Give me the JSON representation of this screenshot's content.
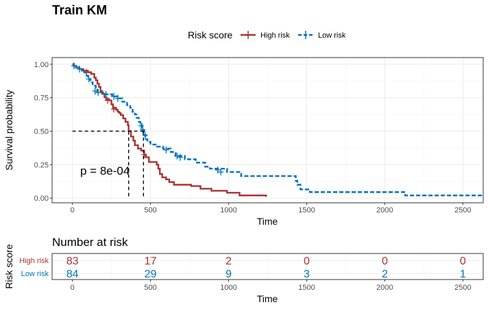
{
  "chart_data": [
    {
      "type": "line",
      "title": "Train KM",
      "xlabel": "Time",
      "ylabel": "Survival probability",
      "xlim": [
        -130,
        2630
      ],
      "ylim": [
        -0.035,
        1.05
      ],
      "x_ticks": [
        0,
        500,
        1000,
        1500,
        2000,
        2500
      ],
      "y_ticks": [
        0.0,
        0.25,
        0.5,
        0.75,
        1.0
      ],
      "y_tick_labels": [
        "0.00",
        "0.25",
        "0.50",
        "0.75",
        "1.00"
      ],
      "grid": true,
      "legend": {
        "title": "Risk score",
        "position": "top",
        "entries": [
          "High risk",
          "Low risk"
        ]
      },
      "annotation": "p = 8e-04",
      "median_survival": {
        "y": 0.5,
        "x": [
          360,
          455
        ]
      },
      "series": [
        {
          "name": "High risk",
          "color": "#a83232",
          "dashed": false,
          "steps": [
            [
              0,
              1.0
            ],
            [
              10,
              0.988
            ],
            [
              25,
              0.976
            ],
            [
              45,
              0.964
            ],
            [
              70,
              0.952
            ],
            [
              100,
              0.94
            ],
            [
              120,
              0.928
            ],
            [
              140,
              0.9
            ],
            [
              150,
              0.88
            ],
            [
              160,
              0.855
            ],
            [
              170,
              0.83
            ],
            [
              180,
              0.8
            ],
            [
              190,
              0.78
            ],
            [
              205,
              0.755
            ],
            [
              215,
              0.74
            ],
            [
              235,
              0.73
            ],
            [
              250,
              0.7
            ],
            [
              260,
              0.675
            ],
            [
              280,
              0.66
            ],
            [
              290,
              0.645
            ],
            [
              300,
              0.635
            ],
            [
              310,
              0.62
            ],
            [
              325,
              0.595
            ],
            [
              340,
              0.57
            ],
            [
              355,
              0.545
            ],
            [
              360,
              0.5
            ],
            [
              375,
              0.46
            ],
            [
              390,
              0.43
            ],
            [
              400,
              0.395
            ],
            [
              420,
              0.37
            ],
            [
              440,
              0.355
            ],
            [
              460,
              0.325
            ],
            [
              470,
              0.305
            ],
            [
              490,
              0.27
            ],
            [
              540,
              0.25
            ],
            [
              550,
              0.22
            ],
            [
              560,
              0.18
            ],
            [
              575,
              0.155
            ],
            [
              600,
              0.14
            ],
            [
              620,
              0.12
            ],
            [
              650,
              0.1
            ],
            [
              760,
              0.09
            ],
            [
              820,
              0.07
            ],
            [
              890,
              0.055
            ],
            [
              990,
              0.04
            ],
            [
              1070,
              0.02
            ],
            [
              1240,
              0.01
            ]
          ],
          "censor": [
            [
              90,
              0.94
            ],
            [
              225,
              0.73
            ],
            [
              265,
              0.665
            ],
            [
              460,
              0.325
            ]
          ]
        },
        {
          "name": "Low risk",
          "color": "#0072bd",
          "dashed": true,
          "steps": [
            [
              0,
              1.0
            ],
            [
              8,
              0.988
            ],
            [
              20,
              0.976
            ],
            [
              40,
              0.964
            ],
            [
              60,
              0.952
            ],
            [
              75,
              0.94
            ],
            [
              85,
              0.915
            ],
            [
              100,
              0.89
            ],
            [
              115,
              0.865
            ],
            [
              130,
              0.84
            ],
            [
              150,
              0.81
            ],
            [
              160,
              0.79
            ],
            [
              205,
              0.775
            ],
            [
              255,
              0.76
            ],
            [
              290,
              0.745
            ],
            [
              320,
              0.72
            ],
            [
              350,
              0.695
            ],
            [
              370,
              0.675
            ],
            [
              385,
              0.645
            ],
            [
              400,
              0.625
            ],
            [
              410,
              0.6
            ],
            [
              425,
              0.57
            ],
            [
              435,
              0.55
            ],
            [
              445,
              0.52
            ],
            [
              455,
              0.5
            ],
            [
              460,
              0.47
            ],
            [
              470,
              0.44
            ],
            [
              480,
              0.42
            ],
            [
              500,
              0.4
            ],
            [
              540,
              0.385
            ],
            [
              580,
              0.37
            ],
            [
              630,
              0.345
            ],
            [
              660,
              0.315
            ],
            [
              720,
              0.29
            ],
            [
              790,
              0.265
            ],
            [
              850,
              0.235
            ],
            [
              880,
              0.22
            ],
            [
              990,
              0.195
            ],
            [
              1080,
              0.165
            ],
            [
              1430,
              0.13
            ],
            [
              1440,
              0.1
            ],
            [
              1460,
              0.065
            ],
            [
              1520,
              0.045
            ],
            [
              2130,
              0.02
            ],
            [
              2630,
              0.02
            ]
          ],
          "censor": [
            [
              10,
              0.988
            ],
            [
              45,
              0.964
            ],
            [
              105,
              0.89
            ],
            [
              145,
              0.8
            ],
            [
              165,
              0.79
            ],
            [
              215,
              0.775
            ],
            [
              265,
              0.76
            ],
            [
              290,
              0.745
            ],
            [
              440,
              0.54
            ],
            [
              450,
              0.51
            ],
            [
              465,
              0.47
            ],
            [
              600,
              0.36
            ],
            [
              670,
              0.315
            ],
            [
              690,
              0.305
            ],
            [
              930,
              0.21
            ],
            [
              950,
              0.195
            ]
          ]
        }
      ]
    },
    {
      "type": "table",
      "title": "Number at risk",
      "ylabel": "Risk score",
      "xlabel": "Time",
      "xlim": [
        -130,
        2630
      ],
      "x_ticks": [
        0,
        500,
        1000,
        1500,
        2000,
        2500
      ],
      "rows": [
        {
          "label": "High risk",
          "color": "#a83232",
          "values": [
            83,
            17,
            2,
            0,
            0,
            0
          ]
        },
        {
          "label": "Low risk",
          "color": "#0072bd",
          "values": [
            84,
            29,
            9,
            3,
            2,
            1
          ]
        }
      ]
    }
  ]
}
